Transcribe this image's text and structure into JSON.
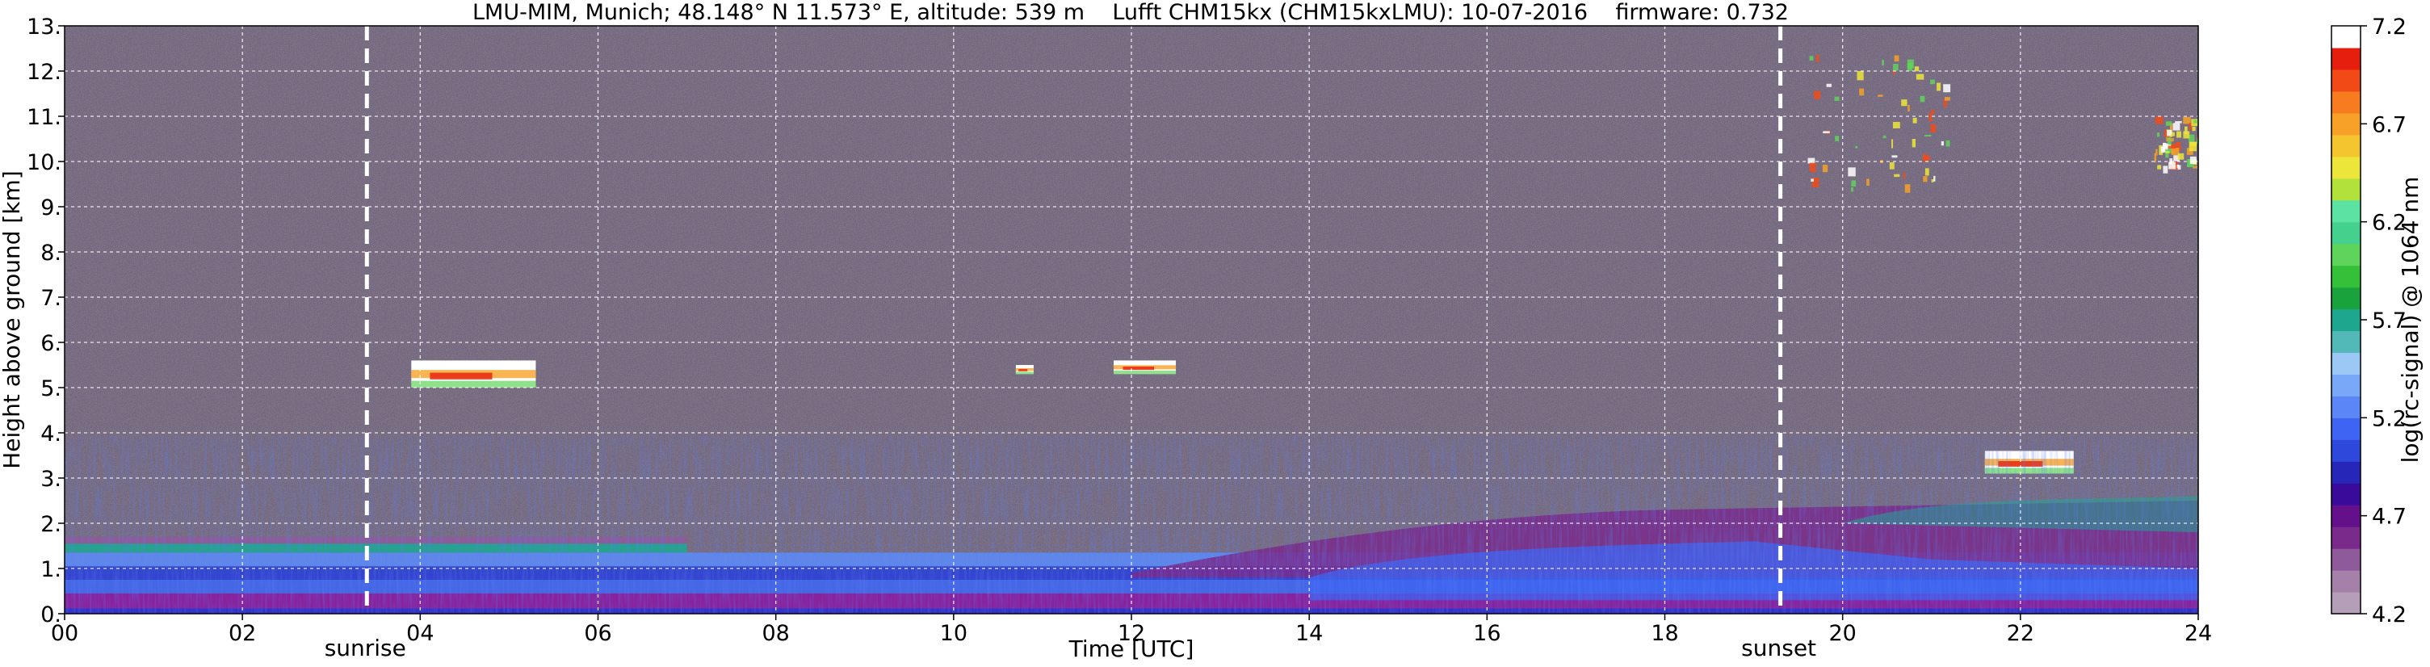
{
  "chart_data": {
    "type": "heatmap",
    "title": "LMU-MIM, Munich; 48.148° N 11.573° E, altitude: 539 m    Lufft CHM15kx (CHM15kxLMU): 10-07-2016    firmware: 0.732",
    "xlabel": "Time [UTC]",
    "ylabel": "Height above ground [km]",
    "xlim": [
      0,
      24
    ],
    "ylim": [
      0,
      13
    ],
    "x_ticks": [
      0,
      2,
      4,
      6,
      8,
      10,
      12,
      14,
      16,
      18,
      20,
      22,
      24
    ],
    "x_tick_labels": [
      "00",
      "02",
      "04",
      "06",
      "08",
      "10",
      "12",
      "14",
      "16",
      "18",
      "20",
      "22",
      "24"
    ],
    "y_ticks": [
      0,
      1,
      2,
      3,
      4,
      5,
      6,
      7,
      8,
      9,
      10,
      11,
      12,
      13
    ],
    "y_tick_labels": [
      "0.",
      "1.",
      "2.",
      "3.",
      "4.",
      "5.",
      "6.",
      "7.",
      "8.",
      "9.",
      "10.",
      "11.",
      "12.",
      "13."
    ],
    "grid": true,
    "markers": [
      {
        "label": "sunrise",
        "time": 3.4
      },
      {
        "label": "sunset",
        "time": 19.3
      }
    ],
    "colorbar": {
      "label": "log(rc-signal) @ 1064 nm",
      "range": [
        4.2,
        7.2
      ],
      "tick_values": [
        4.2,
        4.7,
        5.2,
        5.7,
        6.2,
        6.7,
        7.2
      ],
      "tick_labels": [
        "4.2",
        "4.7",
        "5.2",
        "5.7",
        "6.2",
        "6.7",
        "7.2"
      ],
      "colors": [
        "#b59fb8",
        "#a580a8",
        "#8f5a9a",
        "#7a2a8a",
        "#64108a",
        "#3a0a9a",
        "#2626b8",
        "#2f48dc",
        "#3d64f2",
        "#5a86f8",
        "#79a8f8",
        "#9cc8f5",
        "#52b8b8",
        "#1ea78f",
        "#1aa33c",
        "#35c03a",
        "#5fd45a",
        "#43d18d",
        "#5ce3a4",
        "#b2e13c",
        "#ece63a",
        "#f4c52f",
        "#f7a128",
        "#f67c1f",
        "#f24a17",
        "#e61e0e",
        "#ffffff"
      ]
    },
    "features": [
      {
        "name": "boundary layer aerosol",
        "t_start": 0,
        "t_end": 24,
        "base_km": 0,
        "top_km": 1.7
      },
      {
        "name": "residual/mixed layer",
        "t_start": 12,
        "t_end": 24,
        "base_km": 0.8,
        "top_km": 2.5
      },
      {
        "name": "cloud",
        "t_start": 3.9,
        "t_end": 5.3,
        "base_km": 5.0,
        "top_km": 5.6
      },
      {
        "name": "cloud",
        "t_start": 10.7,
        "t_end": 10.9,
        "base_km": 5.3,
        "top_km": 5.5
      },
      {
        "name": "cloud",
        "t_start": 11.8,
        "t_end": 12.5,
        "base_km": 5.3,
        "top_km": 5.6
      },
      {
        "name": "cloud",
        "t_start": 21.6,
        "t_end": 22.6,
        "base_km": 3.1,
        "top_km": 3.6
      },
      {
        "name": "high cloud",
        "t_start": 19.6,
        "t_end": 21.2,
        "base_km": 9.4,
        "top_km": 12.4
      },
      {
        "name": "high cloud",
        "t_start": 23.5,
        "t_end": 24,
        "base_km": 9.9,
        "top_km": 11.0
      }
    ]
  }
}
